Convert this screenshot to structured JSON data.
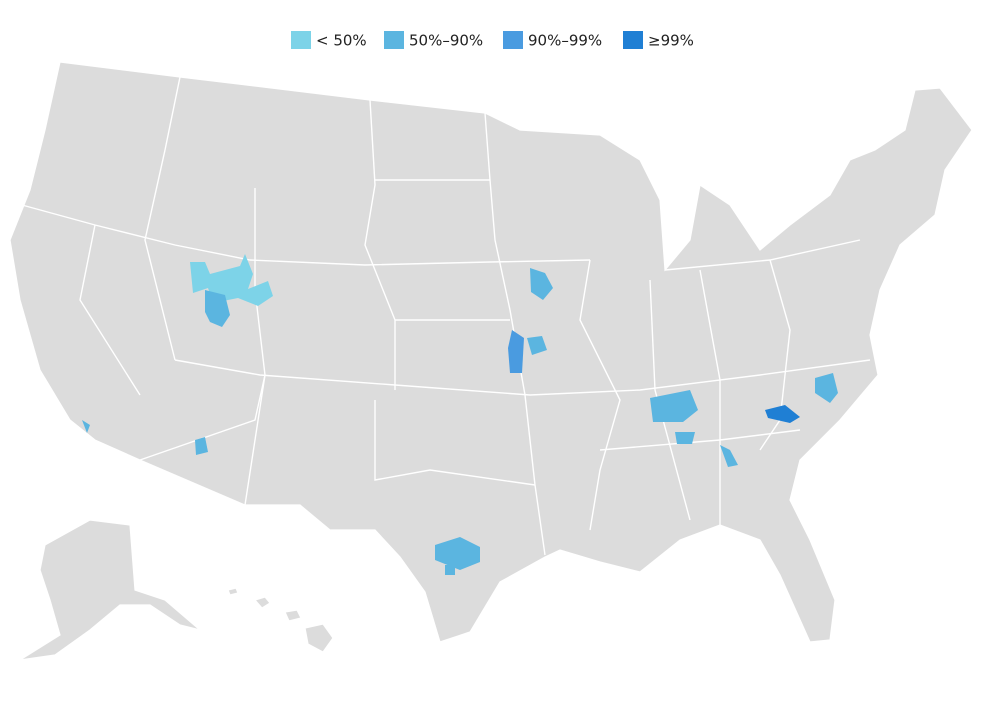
{
  "legend": {
    "items": [
      {
        "label": "< 50%",
        "color": "#7dd3e8"
      },
      {
        "label": "50%–90%",
        "color": "#5bb5e0"
      },
      {
        "label": "90%–99%",
        "color": "#4a9be0"
      },
      {
        "label": "≥99%",
        "color": "#1f7fd4"
      }
    ]
  }
}
